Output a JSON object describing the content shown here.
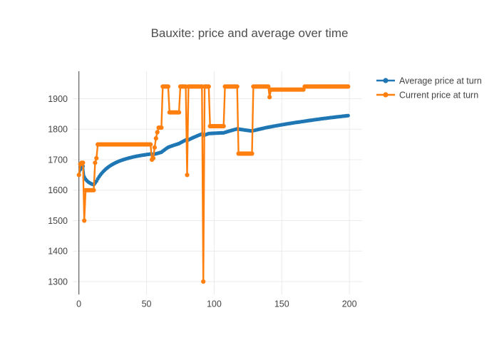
{
  "chart_data": {
    "type": "line",
    "title": "Bauxite: price and average over time",
    "xlabel": "",
    "ylabel": "",
    "x_description": "turn index, 0 to 199",
    "x_range": [
      -4.3,
      209.4
    ],
    "y_range": [
      1258,
      1990
    ],
    "xticks": [
      0,
      50,
      100,
      150,
      200
    ],
    "yticks": [
      1300,
      1400,
      1500,
      1600,
      1700,
      1800,
      1900
    ],
    "grid": true,
    "legend_position": "outside-top-right",
    "series": [
      {
        "name": "Average price at turn",
        "color": "#1f77b4",
        "mode": "lines+markers",
        "derivation": "running (cumulative) average of the 'Current price at turn' series",
        "sample_points": {
          "x": [
            0,
            4,
            11,
            20,
            40,
            53,
            61,
            66,
            74,
            80,
            92,
            107,
            117,
            128,
            140,
            166,
            199
          ],
          "y": [
            1650,
            1643,
            1618,
            1670,
            1709,
            1719,
            1725,
            1741,
            1753,
            1763,
            1779,
            1788,
            1801,
            1794,
            1807,
            1826,
            1845
          ]
        }
      },
      {
        "name": "Current price at turn",
        "color": "#ff7f0e",
        "mode": "lines+markers",
        "x_start": 0,
        "values_rle": [
          [
            1650,
            1
          ],
          [
            1685,
            1
          ],
          [
            1690,
            2
          ],
          [
            1500,
            1
          ],
          [
            1600,
            7
          ],
          [
            1690,
            1
          ],
          [
            1705,
            1
          ],
          [
            1750,
            40
          ],
          [
            1700,
            1
          ],
          [
            1705,
            1
          ],
          [
            1740,
            1
          ],
          [
            1770,
            1
          ],
          [
            1790,
            1
          ],
          [
            1805,
            3
          ],
          [
            1940,
            5
          ],
          [
            1855,
            8
          ],
          [
            1940,
            5
          ],
          [
            1650,
            1
          ],
          [
            1940,
            11
          ],
          [
            1300,
            1
          ],
          [
            1940,
            4
          ],
          [
            1810,
            11
          ],
          [
            1940,
            10
          ],
          [
            1720,
            11
          ],
          [
            1940,
            12
          ],
          [
            1905,
            1
          ],
          [
            1930,
            25
          ],
          [
            1940,
            33
          ]
        ]
      }
    ]
  },
  "colors": {
    "grid": "#ebebeb",
    "zeroline": "#5e5e5e",
    "text": "#444444",
    "background": "#ffffff",
    "series_average": "#1f77b4",
    "series_current": "#ff7f0e"
  }
}
